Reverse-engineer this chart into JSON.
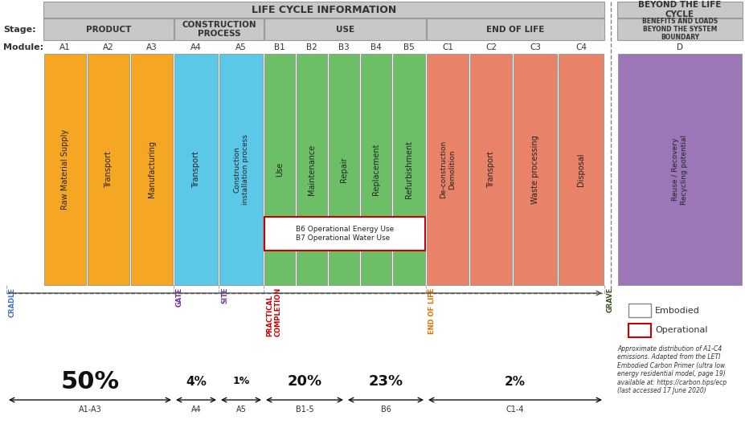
{
  "title_main": "LIFE CYCLE INFORMATION",
  "title_beyond": "BEYOND THE LIFE\nCYCLE",
  "stage_label": "Stage:",
  "module_label": "Module:",
  "bar_texts": [
    "Raw Material Supply",
    "Transport",
    "Manufacturing",
    "Transport",
    "Construction\ninstallation process",
    "Use",
    "Maintenance",
    "Repair",
    "Replacement",
    "Refurbishment",
    "De-construction\nDemolition",
    "Transport",
    "Waste processing",
    "Disposal",
    "Reuse / Recovery\nRecycling potential"
  ],
  "colors": {
    "orange": "#F5A623",
    "blue": "#5BC8E8",
    "green": "#6DBF67",
    "salmon": "#E8836A",
    "purple": "#9B77B8",
    "header_gray": "#C8C8C8",
    "box_outline_red": "#CC0000",
    "white": "#FFFFFF"
  },
  "bar_colors_by_module": {
    "A1": "#F5A623",
    "A2": "#F5A623",
    "A3": "#F5A623",
    "A4": "#5BC8E8",
    "A5": "#5BC8E8",
    "B1": "#6DBF67",
    "B2": "#6DBF67",
    "B3": "#6DBF67",
    "B4": "#6DBF67",
    "B5": "#6DBF67",
    "C1": "#E8836A",
    "C2": "#E8836A",
    "C3": "#E8836A",
    "C4": "#E8836A",
    "D": "#9B77B8"
  },
  "milestone_labels": [
    "CRADLE",
    "GATE",
    "SITE",
    "PRACTICAL\nCOMPLETION",
    "END OF LIFE",
    "GRAVE"
  ],
  "milestone_colors": [
    "#4472C4",
    "#7030A0",
    "#7030A0",
    "#CC0000",
    "#E87000",
    "#375623"
  ],
  "percentages": [
    {
      "label": "50%",
      "sublabel": "A1-A3",
      "fontsize": 22
    },
    {
      "label": "4%",
      "sublabel": "A4",
      "fontsize": 11
    },
    {
      "label": "1%",
      "sublabel": "A5",
      "fontsize": 9
    },
    {
      "label": "20%",
      "sublabel": "B1-5",
      "fontsize": 13
    },
    {
      "label": "23%",
      "sublabel": "B6",
      "fontsize": 13
    },
    {
      "label": "2%",
      "sublabel": "C1-4",
      "fontsize": 11
    }
  ],
  "footnote": "Approximate distribution of A1-C4\nemissions. Adapted from the LETI\nEmbodied Carbon Primer (ultra low\nenergy residential model, page 19)\navailable at: https://carbon.tips/ecp\n(last accessed 17 June 2020)",
  "b6_b7_text": "B6 Operational Energy Use\nB7 Operational Water Use"
}
